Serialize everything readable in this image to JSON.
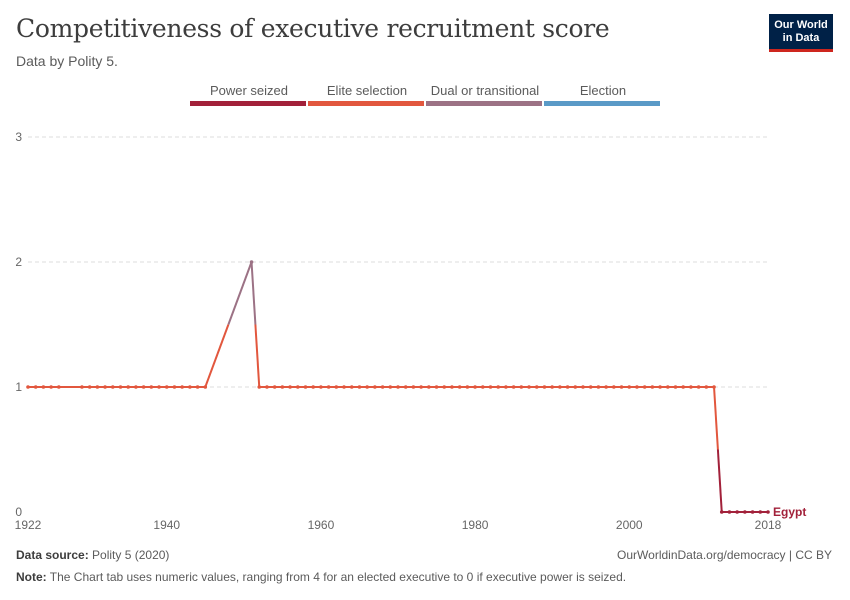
{
  "header": {
    "title": "Competitiveness of executive recruitment score",
    "subtitle": "Data by Polity 5.",
    "logo_line1": "Our World",
    "logo_line2": "in Data"
  },
  "legend": [
    {
      "label": "Power seized",
      "color": "#a2213a"
    },
    {
      "label": "Elite selection",
      "color": "#e2573e"
    },
    {
      "label": "Dual or transitional",
      "color": "#9c7285"
    },
    {
      "label": "Election",
      "color": "#5a9ac7"
    }
  ],
  "footer": {
    "source_label": "Data source:",
    "source_text": "Polity 5 (2020)",
    "note_label": "Note:",
    "note_text": "The Chart tab uses numeric values, ranging from 4 for an elected executive to 0 if executive power is seized.",
    "right_text": "OurWorldinData.org/democracy | CC BY"
  },
  "chart_data": {
    "type": "line",
    "title": "Competitiveness of executive recruitment score",
    "xlim": [
      1922,
      2018
    ],
    "ylim": [
      0,
      3
    ],
    "x_ticks": [
      1922,
      1940,
      1960,
      1980,
      2000,
      2018
    ],
    "y_ticks": [
      0,
      1,
      2,
      3
    ],
    "grid": true,
    "series": [
      {
        "name": "Egypt",
        "color": "#a2213a",
        "points": [
          [
            1922,
            1
          ],
          [
            1923,
            1
          ],
          [
            1924,
            1
          ],
          [
            1925,
            1
          ],
          [
            1926,
            1
          ],
          [
            1929,
            1
          ],
          [
            1930,
            1
          ],
          [
            1931,
            1
          ],
          [
            1932,
            1
          ],
          [
            1933,
            1
          ],
          [
            1934,
            1
          ],
          [
            1935,
            1
          ],
          [
            1936,
            1
          ],
          [
            1937,
            1
          ],
          [
            1938,
            1
          ],
          [
            1939,
            1
          ],
          [
            1940,
            1
          ],
          [
            1941,
            1
          ],
          [
            1942,
            1
          ],
          [
            1943,
            1
          ],
          [
            1944,
            1
          ],
          [
            1945,
            1
          ],
          [
            1951,
            2
          ],
          [
            1952,
            1
          ],
          [
            1953,
            1
          ],
          [
            1954,
            1
          ],
          [
            1955,
            1
          ],
          [
            1956,
            1
          ],
          [
            1957,
            1
          ],
          [
            1958,
            1
          ],
          [
            1959,
            1
          ],
          [
            1960,
            1
          ],
          [
            1961,
            1
          ],
          [
            1962,
            1
          ],
          [
            1963,
            1
          ],
          [
            1964,
            1
          ],
          [
            1965,
            1
          ],
          [
            1966,
            1
          ],
          [
            1967,
            1
          ],
          [
            1968,
            1
          ],
          [
            1969,
            1
          ],
          [
            1970,
            1
          ],
          [
            1971,
            1
          ],
          [
            1972,
            1
          ],
          [
            1973,
            1
          ],
          [
            1974,
            1
          ],
          [
            1975,
            1
          ],
          [
            1976,
            1
          ],
          [
            1977,
            1
          ],
          [
            1978,
            1
          ],
          [
            1979,
            1
          ],
          [
            1980,
            1
          ],
          [
            1981,
            1
          ],
          [
            1982,
            1
          ],
          [
            1983,
            1
          ],
          [
            1984,
            1
          ],
          [
            1985,
            1
          ],
          [
            1986,
            1
          ],
          [
            1987,
            1
          ],
          [
            1988,
            1
          ],
          [
            1989,
            1
          ],
          [
            1990,
            1
          ],
          [
            1991,
            1
          ],
          [
            1992,
            1
          ],
          [
            1993,
            1
          ],
          [
            1994,
            1
          ],
          [
            1995,
            1
          ],
          [
            1996,
            1
          ],
          [
            1997,
            1
          ],
          [
            1998,
            1
          ],
          [
            1999,
            1
          ],
          [
            2000,
            1
          ],
          [
            2001,
            1
          ],
          [
            2002,
            1
          ],
          [
            2003,
            1
          ],
          [
            2004,
            1
          ],
          [
            2005,
            1
          ],
          [
            2006,
            1
          ],
          [
            2007,
            1
          ],
          [
            2008,
            1
          ],
          [
            2009,
            1
          ],
          [
            2010,
            1
          ],
          [
            2011,
            1
          ],
          [
            2012,
            0
          ],
          [
            2013,
            0
          ],
          [
            2014,
            0
          ],
          [
            2015,
            0
          ],
          [
            2016,
            0
          ],
          [
            2017,
            0
          ],
          [
            2018,
            0
          ]
        ]
      }
    ]
  }
}
